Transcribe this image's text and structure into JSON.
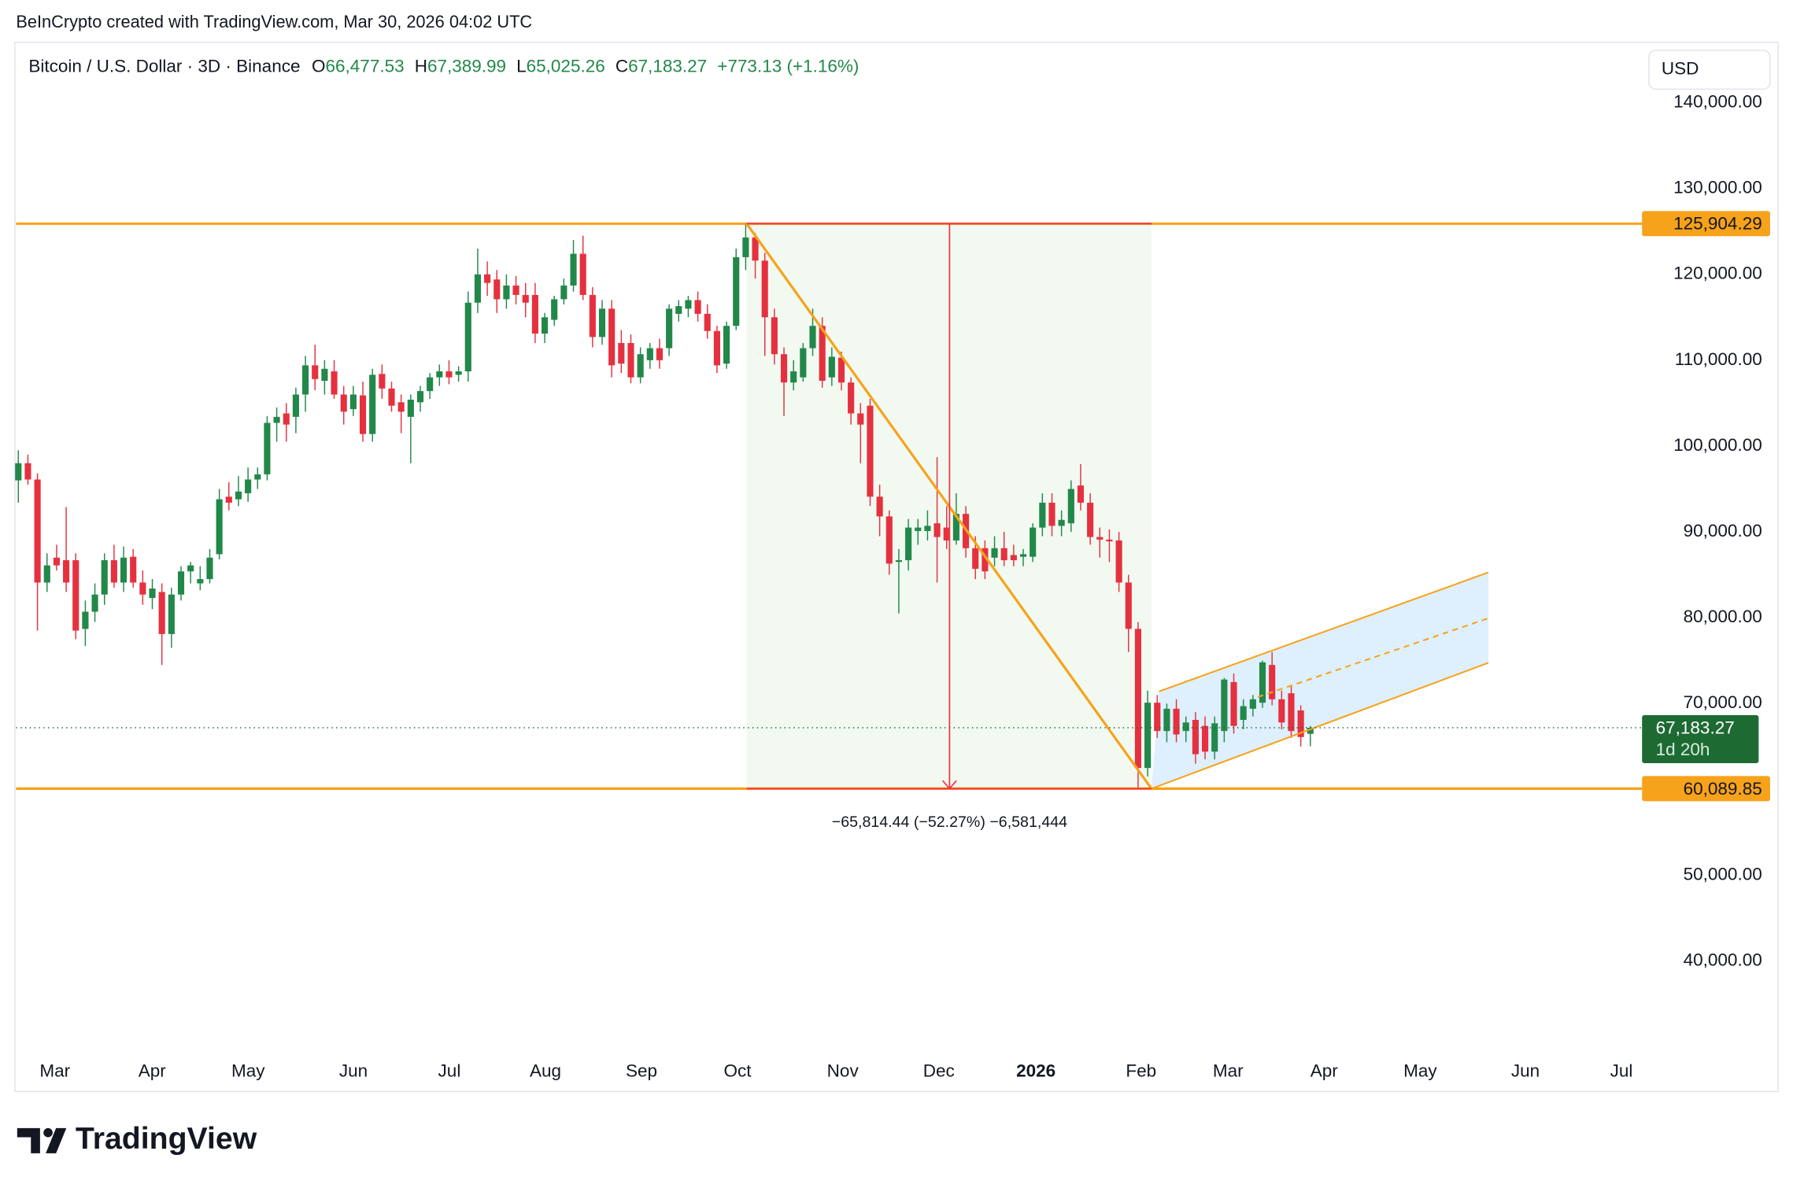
{
  "watermark": "BeInCrypto created with TradingView.com, Mar 30, 2026 04:02 UTC",
  "brand": "TradingView",
  "chart_data": {
    "type": "candlestick",
    "header": {
      "symbol": "Bitcoin / U.S. Dollar · 3D · Binance",
      "fields": [
        {
          "key": "O",
          "value": "66,477.53"
        },
        {
          "key": "H",
          "value": "67,389.99"
        },
        {
          "key": "L",
          "value": "65,025.26"
        },
        {
          "key": "C",
          "value": "67,183.27"
        }
      ],
      "change": "+773.13 (+1.16%)"
    },
    "currency": "USD",
    "up_color": "#22884a",
    "down_color": "#e5313f",
    "ohlc": [
      [
        96000,
        99500,
        93400,
        98000
      ],
      [
        98000,
        99000,
        95500,
        96100
      ],
      [
        96100,
        96800,
        78500,
        84100
      ],
      [
        84100,
        87500,
        83000,
        86100
      ],
      [
        87000,
        88500,
        85500,
        86100
      ],
      [
        86700,
        92900,
        83000,
        84100
      ],
      [
        86700,
        87500,
        77500,
        78500
      ],
      [
        78700,
        82000,
        76700,
        80700
      ],
      [
        80700,
        84000,
        79500,
        82700
      ],
      [
        82700,
        87500,
        81500,
        86700
      ],
      [
        86700,
        88500,
        83500,
        84100
      ],
      [
        84100,
        88300,
        83000,
        87000
      ],
      [
        87100,
        88000,
        83500,
        84100
      ],
      [
        84100,
        85500,
        81500,
        82700
      ],
      [
        82300,
        84500,
        81000,
        83400
      ],
      [
        83000,
        84000,
        74500,
        78100
      ],
      [
        78100,
        83500,
        76500,
        82700
      ],
      [
        82700,
        86000,
        82000,
        85400
      ],
      [
        85400,
        86500,
        84000,
        86100
      ],
      [
        84000,
        86000,
        83200,
        84500
      ],
      [
        84500,
        88000,
        84000,
        87000
      ],
      [
        87400,
        95000,
        86800,
        93800
      ],
      [
        94100,
        95800,
        92500,
        93400
      ],
      [
        93800,
        96500,
        93000,
        94700
      ],
      [
        94500,
        97500,
        93500,
        96100
      ],
      [
        96100,
        97500,
        95000,
        96700
      ],
      [
        96700,
        103500,
        96000,
        102700
      ],
      [
        102700,
        104500,
        100500,
        103400
      ],
      [
        103800,
        105000,
        100500,
        102500
      ],
      [
        103400,
        106800,
        101500,
        106000
      ],
      [
        106000,
        110500,
        104000,
        109400
      ],
      [
        109400,
        111800,
        106500,
        107800
      ],
      [
        107600,
        110000,
        106000,
        109000
      ],
      [
        108700,
        110000,
        105500,
        106000
      ],
      [
        106000,
        107000,
        102500,
        104000
      ],
      [
        104300,
        107000,
        103500,
        106000
      ],
      [
        105900,
        107500,
        100500,
        101400
      ],
      [
        101400,
        109000,
        100500,
        108300
      ],
      [
        108400,
        109500,
        105500,
        106700
      ],
      [
        106700,
        107500,
        104000,
        104700
      ],
      [
        105100,
        106000,
        101500,
        104000
      ],
      [
        103400,
        106000,
        98000,
        105400
      ],
      [
        105100,
        107000,
        104000,
        106400
      ],
      [
        106400,
        108500,
        105500,
        108000
      ],
      [
        108000,
        109500,
        107000,
        108700
      ],
      [
        108700,
        110000,
        107200,
        108000
      ],
      [
        108300,
        109300,
        107500,
        108700
      ],
      [
        108700,
        118000,
        107500,
        116700
      ],
      [
        116700,
        123000,
        115500,
        120000
      ],
      [
        120000,
        121500,
        117500,
        119000
      ],
      [
        119400,
        120500,
        115500,
        117100
      ],
      [
        117100,
        120000,
        116000,
        118700
      ],
      [
        118700,
        119800,
        116500,
        117600
      ],
      [
        117600,
        119000,
        115000,
        116700
      ],
      [
        117600,
        119000,
        112000,
        113100
      ],
      [
        113100,
        115500,
        112000,
        115000
      ],
      [
        114700,
        117500,
        114000,
        117100
      ],
      [
        117100,
        119500,
        116500,
        118700
      ],
      [
        118700,
        124000,
        118000,
        122400
      ],
      [
        122400,
        124500,
        117000,
        117600
      ],
      [
        117600,
        118500,
        111500,
        112700
      ],
      [
        112700,
        117000,
        111800,
        116000
      ],
      [
        116000,
        117000,
        108000,
        109400
      ],
      [
        112000,
        113500,
        108500,
        109600
      ],
      [
        112000,
        113000,
        107300,
        108000
      ],
      [
        108000,
        111500,
        107300,
        110700
      ],
      [
        110000,
        112000,
        109000,
        111400
      ],
      [
        111400,
        112500,
        109000,
        110000
      ],
      [
        111400,
        116500,
        110500,
        116000
      ],
      [
        115400,
        117000,
        114500,
        116300
      ],
      [
        116000,
        117500,
        115000,
        117000
      ],
      [
        117000,
        118000,
        114500,
        115400
      ],
      [
        115400,
        116500,
        112500,
        113400
      ],
      [
        113400,
        114000,
        108500,
        109400
      ],
      [
        109600,
        114500,
        109000,
        114000
      ],
      [
        114000,
        123000,
        113500,
        122000
      ],
      [
        122000,
        125904.29,
        120500,
        124300
      ],
      [
        124300,
        124800,
        119500,
        121600
      ],
      [
        121600,
        122500,
        110500,
        115000
      ],
      [
        115000,
        116000,
        109500,
        110700
      ],
      [
        110700,
        111500,
        103500,
        107400
      ],
      [
        107400,
        110000,
        106500,
        108700
      ],
      [
        108000,
        112000,
        107500,
        111400
      ],
      [
        111400,
        116000,
        110500,
        114000
      ],
      [
        114000,
        115000,
        106800,
        107600
      ],
      [
        108000,
        111500,
        107000,
        110400
      ],
      [
        110300,
        111000,
        106500,
        107400
      ],
      [
        107400,
        108000,
        102500,
        103800
      ],
      [
        103800,
        105000,
        98000,
        102500
      ],
      [
        104700,
        105500,
        93000,
        94100
      ],
      [
        94100,
        95500,
        89500,
        91800
      ],
      [
        91800,
        92500,
        85000,
        86300
      ],
      [
        86500,
        88000,
        80500,
        86700
      ],
      [
        86700,
        91500,
        85500,
        90500
      ],
      [
        90100,
        91500,
        88500,
        90500
      ],
      [
        90100,
        92500,
        89000,
        90700
      ],
      [
        91000,
        98700,
        84100,
        89400
      ],
      [
        90500,
        93000,
        88000,
        89000
      ],
      [
        89000,
        94500,
        88500,
        92100
      ],
      [
        92100,
        93000,
        87000,
        88100
      ],
      [
        88100,
        89500,
        84500,
        85700
      ],
      [
        88100,
        89000,
        84500,
        85400
      ],
      [
        87000,
        89500,
        86000,
        88100
      ],
      [
        88100,
        90000,
        86000,
        86700
      ],
      [
        87300,
        88500,
        86000,
        86700
      ],
      [
        87100,
        88000,
        86000,
        87400
      ],
      [
        87100,
        91000,
        86500,
        90500
      ],
      [
        90500,
        94500,
        89500,
        93400
      ],
      [
        93400,
        94500,
        89500,
        90700
      ],
      [
        90700,
        92500,
        89500,
        91400
      ],
      [
        91000,
        96000,
        90000,
        95000
      ],
      [
        95400,
        97900,
        92500,
        93400
      ],
      [
        93400,
        94500,
        88500,
        89400
      ],
      [
        89400,
        90500,
        87000,
        89100
      ],
      [
        89100,
        90300,
        86500,
        88900
      ],
      [
        89000,
        90000,
        83000,
        84100
      ],
      [
        84100,
        85000,
        76000,
        78700
      ],
      [
        78700,
        79500,
        60089.85,
        62500
      ],
      [
        62500,
        71500,
        61500,
        70100
      ],
      [
        70100,
        71000,
        66000,
        66800
      ],
      [
        66800,
        70000,
        65500,
        69400
      ],
      [
        69400,
        70500,
        65500,
        66400
      ],
      [
        66800,
        68500,
        65500,
        67800
      ],
      [
        68100,
        69000,
        63000,
        64100
      ],
      [
        67400,
        68500,
        63500,
        64400
      ],
      [
        64400,
        68500,
        63500,
        67700
      ],
      [
        66800,
        73000,
        65500,
        72800
      ],
      [
        72500,
        73500,
        66500,
        67400
      ],
      [
        68100,
        70500,
        67000,
        69700
      ],
      [
        69400,
        71000,
        68500,
        70500
      ],
      [
        70100,
        75000,
        69500,
        74800
      ],
      [
        74500,
        76000,
        69800,
        70500
      ],
      [
        70500,
        71500,
        67000,
        67800
      ],
      [
        71200,
        72000,
        66000,
        66800
      ],
      [
        69200,
        69800,
        65000,
        66100
      ],
      [
        66477.53,
        67389.99,
        65025.26,
        67183.27
      ]
    ],
    "xlim": [
      -0.24,
      168.94
    ],
    "xticks": [
      {
        "value": 3.82,
        "label": "Mar"
      },
      {
        "value": 13.98,
        "label": "Apr"
      },
      {
        "value": 24.01,
        "label": "May"
      },
      {
        "value": 35.01,
        "label": "Jun"
      },
      {
        "value": 45.04,
        "label": "Jul"
      },
      {
        "value": 55.08,
        "label": "Aug"
      },
      {
        "value": 65.11,
        "label": "Sep"
      },
      {
        "value": 75.15,
        "label": "Oct"
      },
      {
        "value": 86.14,
        "label": "Nov"
      },
      {
        "value": 96.18,
        "label": "Dec"
      },
      {
        "value": 106.33,
        "label": "2026",
        "bold": true
      },
      {
        "value": 117.32,
        "label": "Feb"
      },
      {
        "value": 126.4,
        "label": "Mar"
      },
      {
        "value": 136.44,
        "label": "Apr"
      },
      {
        "value": 146.48,
        "label": "May"
      },
      {
        "value": 157.47,
        "label": "Jun"
      },
      {
        "value": 167.5,
        "label": "Jul"
      }
    ],
    "ylim": [
      28800,
      146900
    ],
    "yticks": [
      {
        "value": 40000,
        "label": "40,000.00"
      },
      {
        "value": 50000,
        "label": "50,000.00"
      },
      {
        "value": 60000,
        "label": "60,000.00"
      },
      {
        "value": 70000,
        "label": "70,000.00"
      },
      {
        "value": 80000,
        "label": "80,000.00"
      },
      {
        "value": 90000,
        "label": "90,000.00"
      },
      {
        "value": 100000,
        "label": "100,000.00"
      },
      {
        "value": 110000,
        "label": "110,000.00"
      },
      {
        "value": 120000,
        "label": "120,000.00"
      },
      {
        "value": 130000,
        "label": "130,000.00"
      },
      {
        "value": 140000,
        "label": "140,000.00"
      }
    ],
    "hidden_yticks": [
      60000
    ],
    "levels": [
      {
        "value": 125904.29,
        "label": "125,904.29"
      },
      {
        "value": 60089.85,
        "label": "60,089.85"
      }
    ],
    "level_color": "#f7a21b",
    "last_price": {
      "label": "67,183.27",
      "countdown": "1d 20h",
      "color": "#1e6a33"
    },
    "measure": {
      "x": [
        76.1,
        118.4
      ],
      "y": [
        125904.29,
        60089.85
      ],
      "arrow_x": 97.3,
      "label": "−65,814.44 (−52.27%) −6,581,444",
      "color": "#f23645"
    },
    "trendline": {
      "x": [
        76.1,
        118.4
      ],
      "y": [
        125904.29,
        60089.85
      ]
    },
    "channel": {
      "lower": {
        "x": [
          118.4,
          153.6
        ],
        "y": [
          60089.85,
          74750
        ]
      },
      "upper": {
        "x": [
          119.2,
          153.6
        ],
        "y": [
          71420,
          85280
        ]
      },
      "middle": {
        "x": [
          129.5,
          153.6
        ],
        "y": [
          70760,
          79940
        ]
      }
    }
  }
}
